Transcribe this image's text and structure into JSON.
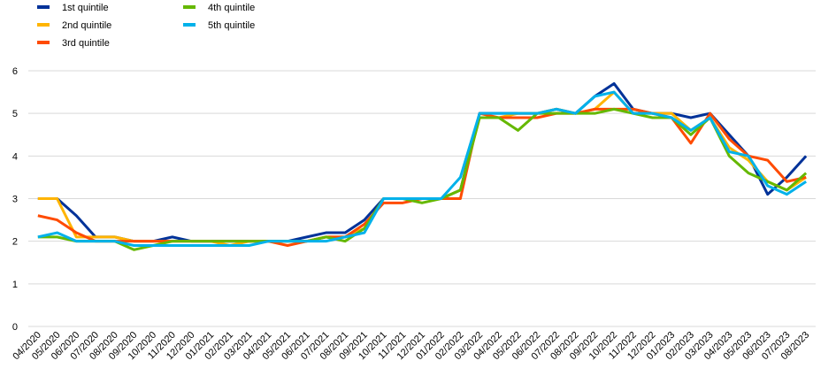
{
  "chart_data": {
    "type": "line",
    "categories": [
      "04/2020",
      "05/2020",
      "06/2020",
      "07/2020",
      "08/2020",
      "09/2020",
      "10/2020",
      "11/2020",
      "12/2020",
      "01/2021",
      "02/2021",
      "03/2021",
      "04/2021",
      "05/2021",
      "06/2021",
      "07/2021",
      "08/2021",
      "09/2021",
      "10/2021",
      "11/2021",
      "12/2021",
      "01/2022",
      "02/2022",
      "03/2022",
      "04/2022",
      "05/2022",
      "06/2022",
      "07/2022",
      "08/2022",
      "09/2022",
      "10/2022",
      "11/2022",
      "12/2022",
      "01/2023",
      "02/2023",
      "03/2023",
      "04/2023",
      "05/2023",
      "06/2023",
      "07/2023",
      "08/2023"
    ],
    "series": [
      {
        "name": "1st quintile",
        "color": "#003299",
        "values": [
          3,
          3,
          2.6,
          2.1,
          2.1,
          2,
          2,
          2.1,
          2,
          2,
          2,
          2,
          2,
          2,
          2.1,
          2.2,
          2.2,
          2.5,
          3,
          3,
          3,
          3,
          3.2,
          5,
          5,
          5,
          5,
          5.1,
          5,
          5.4,
          5.7,
          5.1,
          5,
          5,
          4.9,
          5,
          4.5,
          4,
          3.1,
          3.5,
          4
        ]
      },
      {
        "name": "2nd quintile",
        "color": "#ffb400",
        "values": [
          3,
          3,
          2.1,
          2.1,
          2.1,
          2,
          2,
          2,
          2,
          2,
          1.9,
          2,
          2,
          2,
          2,
          2.1,
          2.1,
          2.3,
          3,
          3,
          3,
          3,
          3.2,
          4.9,
          4.9,
          5,
          5,
          5.1,
          5,
          5.1,
          5.5,
          5,
          5,
          5,
          4.6,
          4.9,
          4.2,
          3.9,
          3.4,
          3.2,
          3.5
        ]
      },
      {
        "name": "3rd quintile",
        "color": "#ff4b00",
        "values": [
          2.6,
          2.5,
          2.2,
          2,
          2,
          2,
          2,
          2,
          2,
          2,
          2,
          2,
          2,
          1.9,
          2,
          2.1,
          2.1,
          2.4,
          2.9,
          2.9,
          3,
          3,
          3,
          5,
          4.9,
          4.9,
          4.9,
          5,
          5,
          5.1,
          5.1,
          5.1,
          5,
          4.9,
          4.3,
          5,
          4.4,
          4,
          3.9,
          3.4,
          3.5
        ]
      },
      {
        "name": "4th quintile",
        "color": "#65b800",
        "values": [
          2.1,
          2.1,
          2,
          2,
          2,
          1.8,
          1.9,
          2,
          2,
          2,
          2,
          2,
          2,
          2,
          2,
          2.1,
          2,
          2.3,
          3,
          3,
          2.9,
          3,
          3.2,
          4.9,
          4.9,
          4.6,
          5,
          5,
          5,
          5,
          5.1,
          5,
          4.9,
          4.9,
          4.5,
          4.9,
          4,
          3.6,
          3.4,
          3.2,
          3.6
        ]
      },
      {
        "name": "5th quintile",
        "color": "#00b1ea",
        "values": [
          2.1,
          2.2,
          2,
          2,
          2,
          1.9,
          1.9,
          1.9,
          1.9,
          1.9,
          1.9,
          1.9,
          2,
          2,
          2,
          2,
          2.1,
          2.2,
          3,
          3,
          3,
          3,
          3.5,
          5,
          5,
          5,
          5,
          5.1,
          5,
          5.4,
          5.5,
          5,
          5,
          4.9,
          4.6,
          4.9,
          4.1,
          4,
          3.3,
          3.1,
          3.4
        ]
      }
    ],
    "ylim": [
      0,
      6
    ],
    "yticks": [
      0,
      1,
      2,
      3,
      4,
      5,
      6
    ],
    "grid": true
  }
}
